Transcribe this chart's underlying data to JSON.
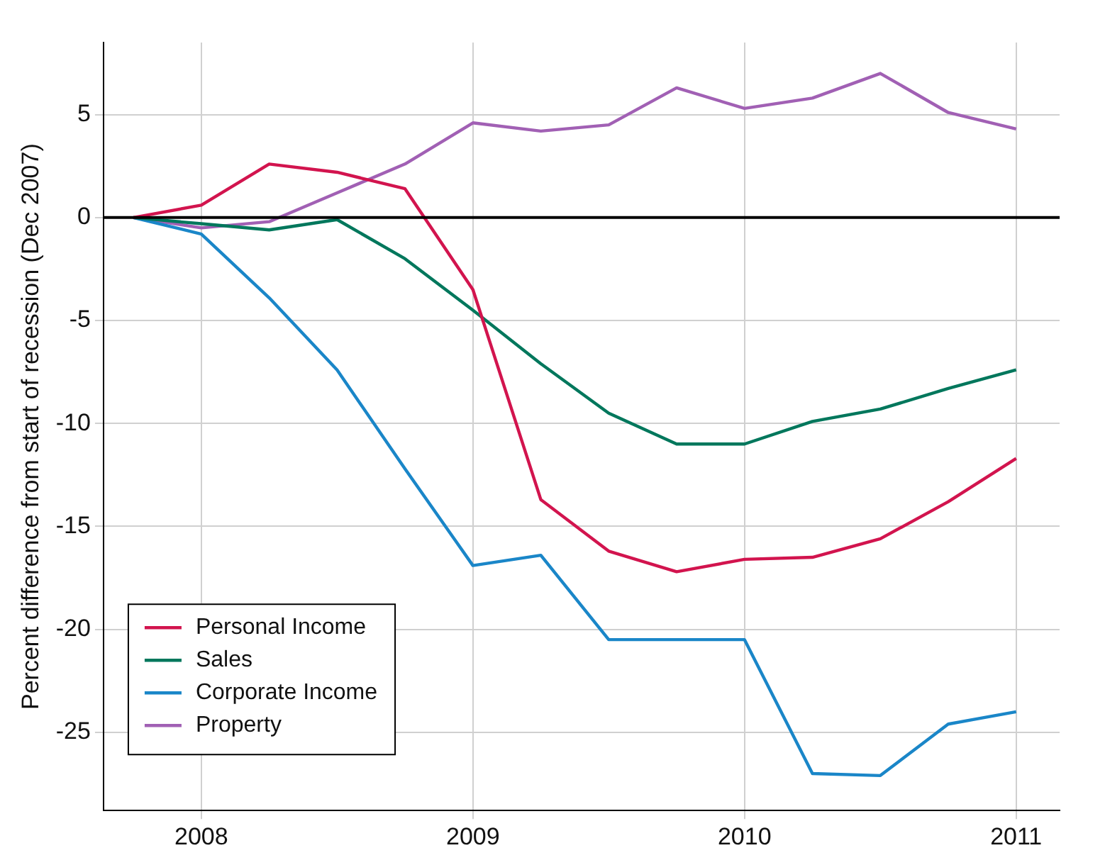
{
  "chart_data": {
    "type": "line",
    "ylabel": "Percent difference from start of recession (Dec 2007)",
    "x": [
      2007.75,
      2008,
      2008.25,
      2008.5,
      2008.75,
      2009,
      2009.25,
      2009.5,
      2009.75,
      2010,
      2010.25,
      2010.5,
      2010.75,
      2011
    ],
    "series": [
      {
        "name": "Personal Income",
        "color": "#d2144e",
        "values": [
          0,
          0.6,
          2.6,
          2.2,
          1.4,
          -3.5,
          -13.7,
          -16.2,
          -17.2,
          -16.6,
          -16.5,
          -15.6,
          -13.8,
          -11.7
        ]
      },
      {
        "name": "Sales",
        "color": "#00775c",
        "values": [
          0,
          -0.3,
          -0.6,
          -0.1,
          -2,
          -4.5,
          -7.1,
          -9.5,
          -11,
          -11,
          -9.9,
          -9.3,
          -8.3,
          -7.4
        ]
      },
      {
        "name": "Corporate Income",
        "color": "#1a86c8",
        "values": [
          0,
          -0.8,
          -3.9,
          -7.4,
          -12.2,
          -16.9,
          -16.4,
          -20.5,
          -20.5,
          -20.5,
          -27,
          -27.1,
          -24.6,
          -24
        ]
      },
      {
        "name": "Property",
        "color": "#a160b4",
        "values": [
          0,
          -0.5,
          -0.2,
          1.2,
          2.6,
          4.6,
          4.2,
          4.5,
          6.3,
          5.3,
          5.8,
          7,
          5.1,
          4.3
        ]
      }
    ],
    "xlim": [
      2007.64,
      2011.16
    ],
    "xticks": [
      2008,
      2009,
      2010,
      2011
    ],
    "ylim": [
      -28.8,
      8.5
    ],
    "yticks": [
      5,
      0,
      -5,
      -10,
      -15,
      -20,
      -25
    ],
    "ref_lines": [
      {
        "axis": "y",
        "value": 0,
        "color": "#000000"
      }
    ],
    "grid": true,
    "legend": "bottom left",
    "marker": "none",
    "line_style": "solid"
  }
}
